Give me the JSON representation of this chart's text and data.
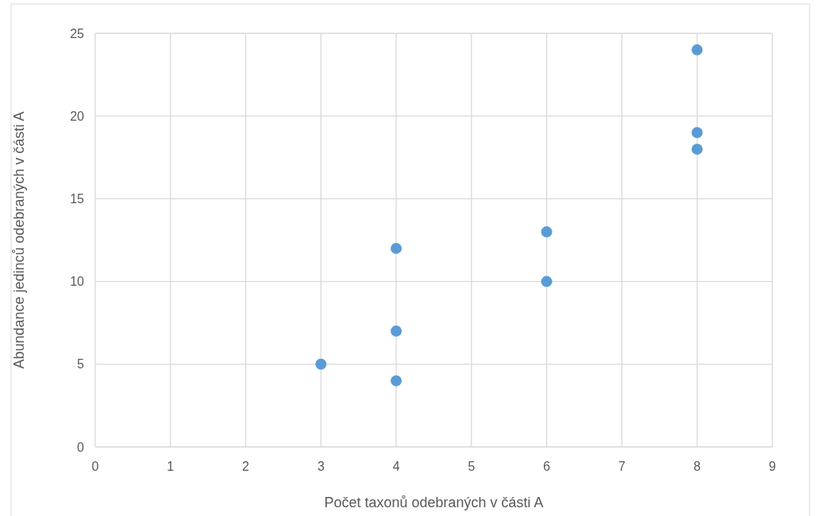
{
  "chart_data": {
    "type": "scatter",
    "x": [
      3,
      4,
      4,
      4,
      6,
      6,
      8,
      8,
      8
    ],
    "values": [
      5,
      4,
      7,
      12,
      10,
      13,
      18,
      19,
      24
    ],
    "color": "#5b9bd5",
    "marker": "circle",
    "xlabel": "Počet taxonů odebraných v části A",
    "ylabel": "Abundance jedinců odebraných v části A",
    "xlim": [
      0,
      9
    ],
    "xticks": [
      0,
      1,
      2,
      3,
      4,
      5,
      6,
      7,
      8,
      9
    ],
    "ylim": [
      0,
      25
    ],
    "yticks": [
      0,
      5,
      10,
      15,
      20,
      25
    ],
    "grid": true
  }
}
